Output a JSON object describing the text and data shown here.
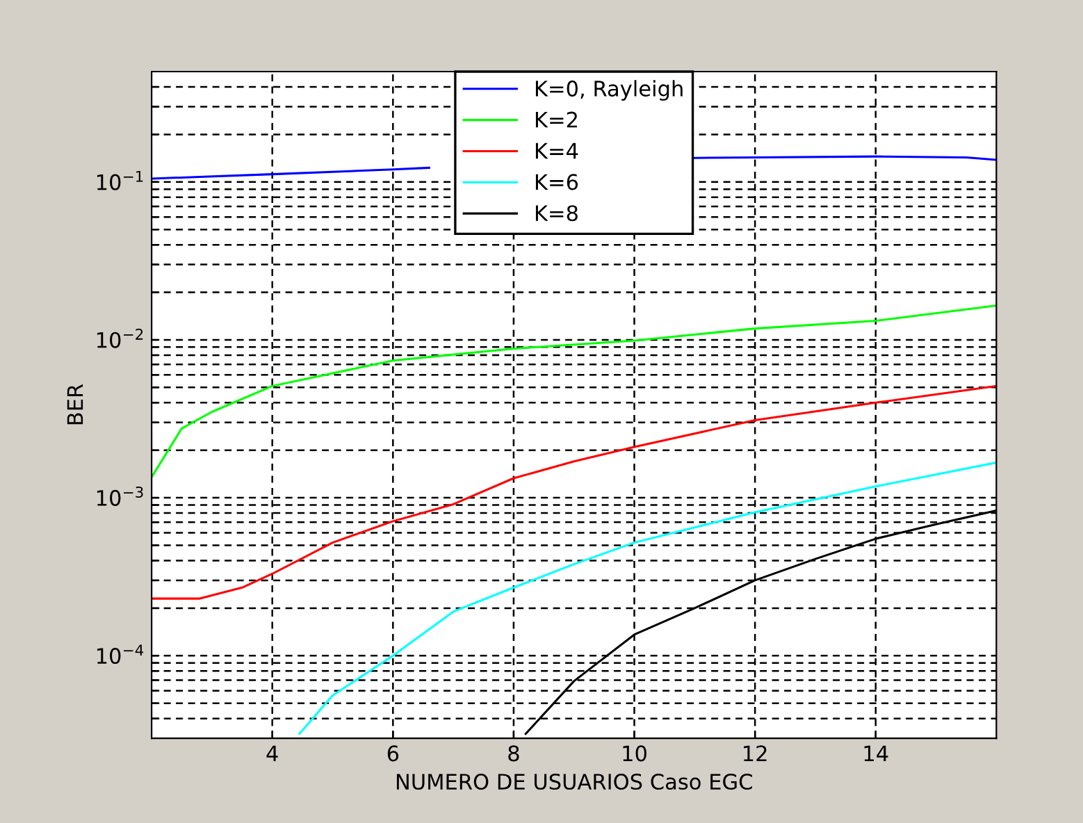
{
  "chart_data": {
    "type": "line",
    "xlabel": "NUMERO DE USUARIOS Caso EGC",
    "ylabel": "BER",
    "log": "y",
    "xlim": [
      2,
      16
    ],
    "xticks": [
      4,
      6,
      8,
      10,
      12,
      14
    ],
    "ylim": [
      3e-05,
      0.5
    ],
    "yticks": [
      {
        "value": 4e-05,
        "label": null
      },
      {
        "value": 5e-05,
        "label": null
      },
      {
        "value": 6e-05,
        "label": null
      },
      {
        "value": 7e-05,
        "label": null
      },
      {
        "value": 8e-05,
        "label": null
      },
      {
        "value": 9e-05,
        "label": null
      },
      {
        "value": 0.0001,
        "label": "10$^{−4}$"
      },
      {
        "value": 0.0002,
        "label": null
      },
      {
        "value": 0.0003,
        "label": null
      },
      {
        "value": 0.0004,
        "label": null
      },
      {
        "value": 0.0005,
        "label": null
      },
      {
        "value": 0.0006,
        "label": null
      },
      {
        "value": 0.0007,
        "label": null
      },
      {
        "value": 0.0008,
        "label": null
      },
      {
        "value": 0.0009,
        "label": null
      },
      {
        "value": 0.001,
        "label": "10$^{−3}$"
      },
      {
        "value": 0.002,
        "label": null
      },
      {
        "value": 0.003,
        "label": null
      },
      {
        "value": 0.004,
        "label": null
      },
      {
        "value": 0.005,
        "label": null
      },
      {
        "value": 0.006,
        "label": null
      },
      {
        "value": 0.007,
        "label": null
      },
      {
        "value": 0.008,
        "label": null
      },
      {
        "value": 0.009,
        "label": null
      },
      {
        "value": 0.01,
        "label": "10$^{−2}$"
      },
      {
        "value": 0.02,
        "label": null
      },
      {
        "value": 0.03,
        "label": null
      },
      {
        "value": 0.04,
        "label": null
      },
      {
        "value": 0.05,
        "label": null
      },
      {
        "value": 0.06,
        "label": null
      },
      {
        "value": 0.07,
        "label": null
      },
      {
        "value": 0.08,
        "label": null
      },
      {
        "value": 0.09,
        "label": null
      },
      {
        "value": 0.1,
        "label": "10$^{−1}$"
      },
      {
        "value": 0.2,
        "label": null
      },
      {
        "value": 0.3,
        "label": null
      },
      {
        "value": 0.4,
        "label": null
      }
    ],
    "grid": true,
    "legend": "top",
    "line_style": "solid",
    "marker": "none",
    "series": [
      {
        "name": "K=0, Rayleigh",
        "color": "#0000ff",
        "x": [
          2,
          4,
          6,
          6.6,
          8,
          10,
          11,
          12,
          14,
          15.5,
          16
        ],
        "values": [
          0.105,
          0.112,
          0.12,
          0.123,
          null,
          null,
          0.142,
          0.143,
          0.145,
          0.143,
          0.138
        ]
      },
      {
        "name": "K=2",
        "color": "#00ff00",
        "x": [
          2,
          2.5,
          3,
          4,
          6,
          8,
          10,
          12,
          14,
          16
        ],
        "values": [
          0.00135,
          0.00275,
          0.0035,
          0.0051,
          0.0074,
          0.0088,
          0.0099,
          0.0118,
          0.0132,
          0.0165
        ]
      },
      {
        "name": "K=4",
        "color": "#ff0000",
        "x": [
          2,
          2.8,
          3.5,
          4,
          5,
          6,
          7,
          8,
          9,
          10,
          12,
          14,
          16
        ],
        "values": [
          0.00023,
          0.00023,
          0.00027,
          0.00033,
          0.00052,
          0.00071,
          0.00091,
          0.00133,
          0.0017,
          0.0021,
          0.0031,
          0.004,
          0.0051
        ]
      },
      {
        "name": "K=6",
        "color": "#00ffff",
        "x": [
          4.45,
          5,
          6,
          7,
          8,
          9,
          10,
          12,
          14,
          16
        ],
        "values": [
          3.2e-05,
          5.6e-05,
          0.0001,
          0.00019,
          0.00027,
          0.00038,
          0.00052,
          0.00081,
          0.00118,
          0.00167
        ]
      },
      {
        "name": "K=8",
        "color": "#000000",
        "x": [
          8.2,
          9,
          10,
          11,
          12,
          13,
          14,
          15,
          16
        ],
        "values": [
          3.2e-05,
          6.9e-05,
          0.000136,
          0.0002,
          0.0003,
          0.00041,
          0.00055,
          0.00068,
          0.00083
        ]
      }
    ]
  }
}
